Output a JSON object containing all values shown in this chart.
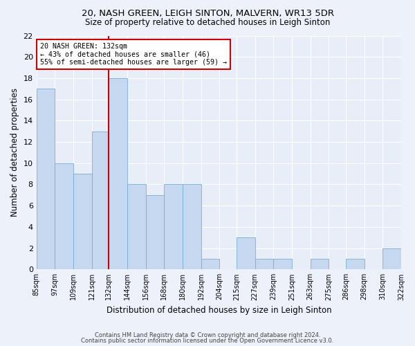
{
  "title": "20, NASH GREEN, LEIGH SINTON, MALVERN, WR13 5DR",
  "subtitle": "Size of property relative to detached houses in Leigh Sinton",
  "xlabel": "Distribution of detached houses by size in Leigh Sinton",
  "ylabel": "Number of detached properties",
  "bar_color": "#c5d8f0",
  "bar_edge_color": "#7aadd4",
  "bins": [
    85,
    97,
    109,
    121,
    132,
    144,
    156,
    168,
    180,
    192,
    204,
    215,
    227,
    239,
    251,
    263,
    275,
    286,
    298,
    310,
    322
  ],
  "values": [
    17,
    10,
    9,
    13,
    18,
    8,
    7,
    8,
    8,
    1,
    0,
    3,
    1,
    1,
    0,
    1,
    0,
    1,
    0,
    2
  ],
  "tick_labels": [
    "85sqm",
    "97sqm",
    "109sqm",
    "121sqm",
    "132sqm",
    "144sqm",
    "156sqm",
    "168sqm",
    "180sqm",
    "192sqm",
    "204sqm",
    "215sqm",
    "227sqm",
    "239sqm",
    "251sqm",
    "263sqm",
    "275sqm",
    "286sqm",
    "298sqm",
    "310sqm",
    "322sqm"
  ],
  "property_size": 132,
  "annotation_line1": "20 NASH GREEN: 132sqm",
  "annotation_line2": "← 43% of detached houses are smaller (46)",
  "annotation_line3": "55% of semi-detached houses are larger (59) →",
  "annotation_box_color": "#ffffff",
  "annotation_box_edge_color": "#cc0000",
  "vline_color": "#cc0000",
  "ylim": [
    0,
    22
  ],
  "yticks": [
    0,
    2,
    4,
    6,
    8,
    10,
    12,
    14,
    16,
    18,
    20,
    22
  ],
  "footer_line1": "Contains HM Land Registry data © Crown copyright and database right 2024.",
  "footer_line2": "Contains public sector information licensed under the Open Government Licence v3.0.",
  "fig_bg_color": "#edf2fa",
  "ax_bg_color": "#e8eef8",
  "grid_color": "#ffffff"
}
